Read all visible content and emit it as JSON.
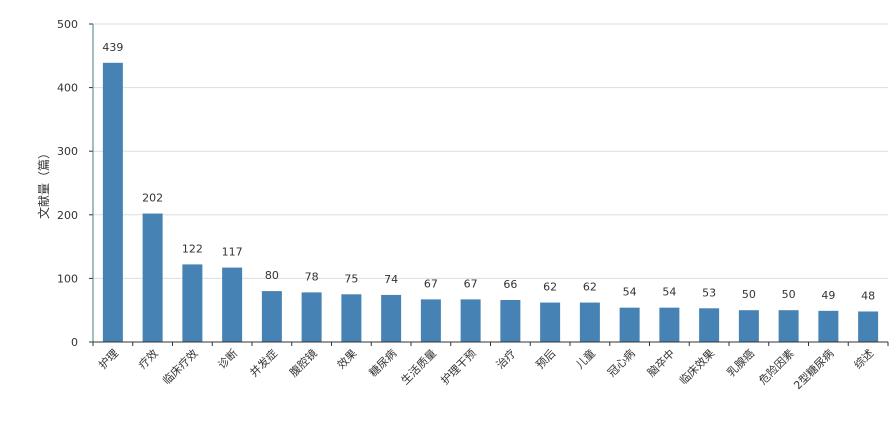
{
  "chart_data": {
    "type": "bar",
    "ylabel": "文献量（篇）",
    "ylim": [
      0,
      500
    ],
    "yticks": [
      0,
      100,
      200,
      300,
      400,
      500
    ],
    "grid": true,
    "bar_color": "#4682b4",
    "categories": [
      "护理",
      "疗效",
      "临床疗效",
      "诊断",
      "并发症",
      "腹腔镜",
      "效果",
      "糖尿病",
      "生活质量",
      "护理干预",
      "治疗",
      "预后",
      "儿童",
      "冠心病",
      "脑卒中",
      "临床效果",
      "乳腺癌",
      "危险因素",
      "2型糖尿病",
      "综述"
    ],
    "values": [
      439,
      202,
      122,
      117,
      80,
      78,
      75,
      74,
      67,
      67,
      66,
      62,
      62,
      54,
      54,
      53,
      50,
      50,
      49,
      48
    ]
  }
}
